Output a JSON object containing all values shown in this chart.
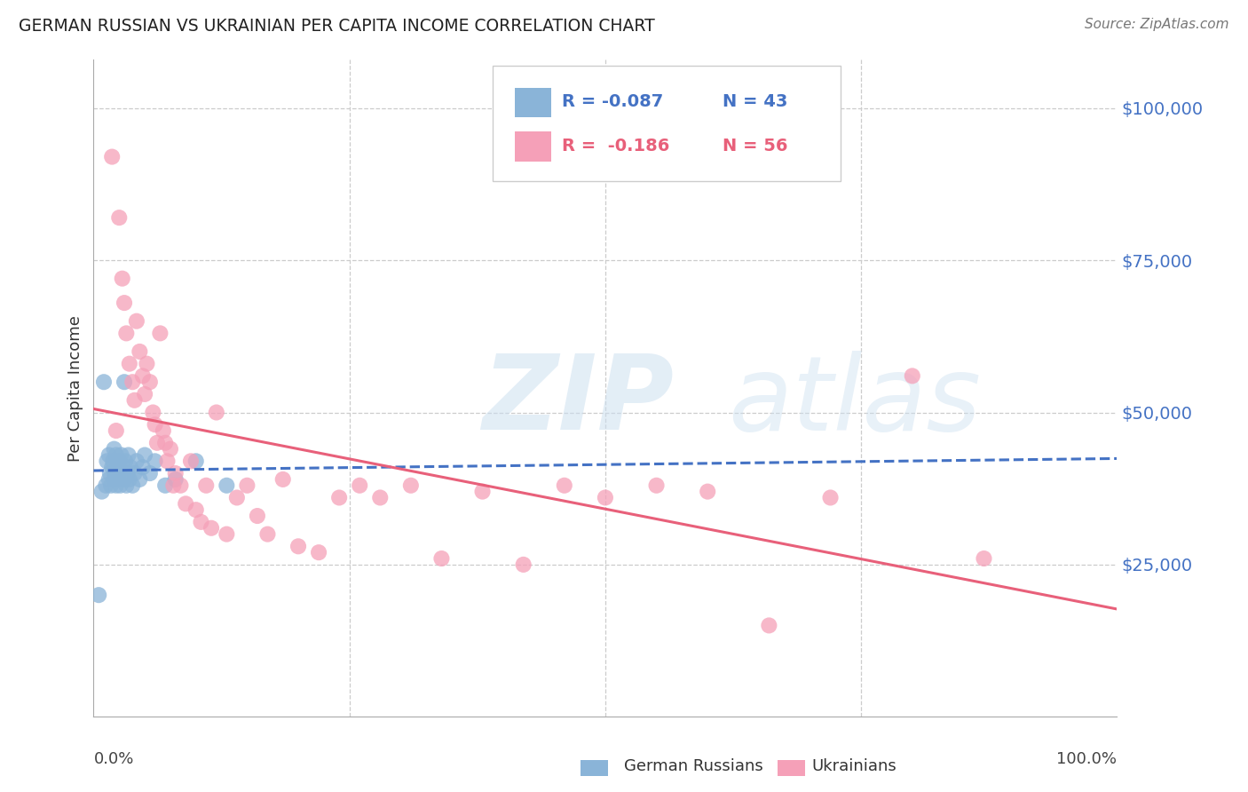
{
  "title": "GERMAN RUSSIAN VS UKRAINIAN PER CAPITA INCOME CORRELATION CHART",
  "source": "Source: ZipAtlas.com",
  "ylabel": "Per Capita Income",
  "legend_label1": "German Russians",
  "legend_label2": "Ukrainians",
  "watermark_zip": "ZIP",
  "watermark_atlas": "atlas",
  "ytick_labels": [
    "$25,000",
    "$50,000",
    "$75,000",
    "$100,000"
  ],
  "ytick_values": [
    25000,
    50000,
    75000,
    100000
  ],
  "ymax": 108000,
  "ymin": 0,
  "xmin": 0.0,
  "xmax": 1.0,
  "blue_color": "#8ab4d8",
  "pink_color": "#f5a0b8",
  "blue_line_color": "#4472c4",
  "pink_line_color": "#e8607a",
  "background_color": "#ffffff",
  "grid_color": "#cccccc",
  "german_russian_x": [
    0.005,
    0.008,
    0.01,
    0.012,
    0.013,
    0.015,
    0.015,
    0.016,
    0.017,
    0.018,
    0.019,
    0.02,
    0.02,
    0.021,
    0.022,
    0.022,
    0.023,
    0.023,
    0.025,
    0.025,
    0.026,
    0.027,
    0.028,
    0.03,
    0.03,
    0.031,
    0.032,
    0.033,
    0.034,
    0.035,
    0.036,
    0.038,
    0.04,
    0.042,
    0.045,
    0.048,
    0.05,
    0.055,
    0.06,
    0.07,
    0.08,
    0.1,
    0.13
  ],
  "german_russian_y": [
    20000,
    37000,
    55000,
    38000,
    42000,
    39000,
    43000,
    40000,
    38000,
    41000,
    42000,
    39000,
    44000,
    40000,
    38000,
    43000,
    41000,
    39000,
    40000,
    42000,
    38000,
    43000,
    41000,
    39000,
    55000,
    42000,
    38000,
    40000,
    43000,
    39000,
    41000,
    38000,
    40000,
    42000,
    39000,
    41000,
    43000,
    40000,
    42000,
    38000,
    39000,
    42000,
    38000
  ],
  "ukrainian_x": [
    0.018,
    0.022,
    0.025,
    0.028,
    0.03,
    0.032,
    0.035,
    0.038,
    0.04,
    0.042,
    0.045,
    0.048,
    0.05,
    0.052,
    0.055,
    0.058,
    0.06,
    0.062,
    0.065,
    0.068,
    0.07,
    0.072,
    0.075,
    0.078,
    0.08,
    0.085,
    0.09,
    0.095,
    0.1,
    0.105,
    0.11,
    0.115,
    0.12,
    0.13,
    0.14,
    0.15,
    0.16,
    0.17,
    0.185,
    0.2,
    0.22,
    0.24,
    0.26,
    0.28,
    0.31,
    0.34,
    0.38,
    0.42,
    0.46,
    0.5,
    0.55,
    0.6,
    0.66,
    0.72,
    0.8,
    0.87
  ],
  "ukrainian_y": [
    92000,
    47000,
    82000,
    72000,
    68000,
    63000,
    58000,
    55000,
    52000,
    65000,
    60000,
    56000,
    53000,
    58000,
    55000,
    50000,
    48000,
    45000,
    63000,
    47000,
    45000,
    42000,
    44000,
    38000,
    40000,
    38000,
    35000,
    42000,
    34000,
    32000,
    38000,
    31000,
    50000,
    30000,
    36000,
    38000,
    33000,
    30000,
    39000,
    28000,
    27000,
    36000,
    38000,
    36000,
    38000,
    26000,
    37000,
    25000,
    38000,
    36000,
    38000,
    37000,
    15000,
    36000,
    56000,
    26000
  ]
}
